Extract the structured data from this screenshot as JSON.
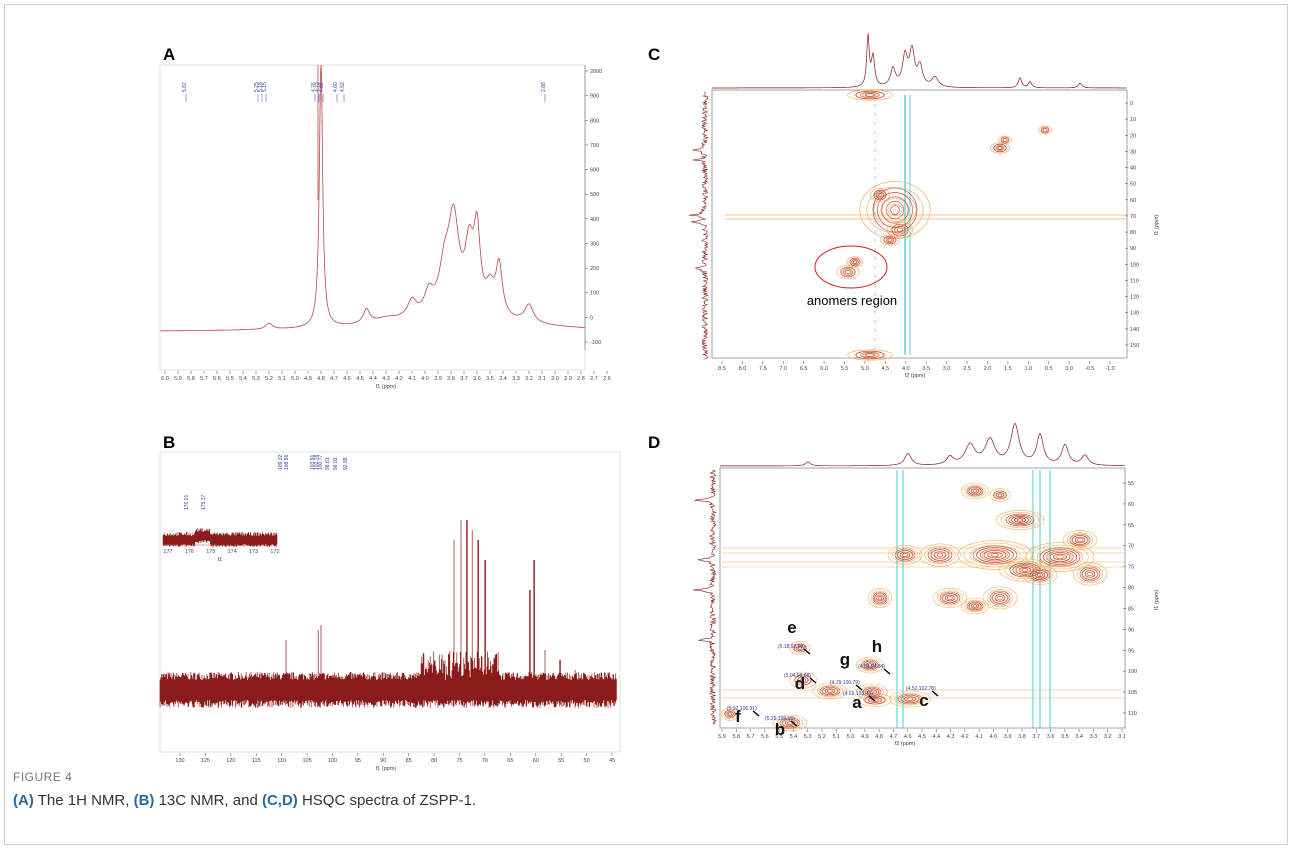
{
  "figure": {
    "panels": {
      "A": {
        "letter": "A",
        "x_axis_title": "f1 (ppm)",
        "x_ticks": [
          "6.0",
          "5.9",
          "5.8",
          "5.7",
          "5.6",
          "5.5",
          "5.4",
          "5.3",
          "5.2",
          "5.1",
          "5.0",
          "4.9",
          "4.8",
          "4.7",
          "4.6",
          "4.5",
          "4.4",
          "4.3",
          "4.2",
          "4.1",
          "4.0",
          "3.9",
          "3.8",
          "3.7",
          "3.6",
          "3.5",
          "3.4",
          "3.3",
          "3.2",
          "3.1",
          "3.0",
          "2.9",
          "2.8",
          "2.7",
          "2.6"
        ],
        "y_ticks": [
          "2000",
          "900",
          "800",
          "700",
          "600",
          "500",
          "400",
          "300",
          "200",
          "100",
          "0",
          "-100"
        ],
        "peak_labels": [
          "5.82",
          "5.25",
          "5.18",
          "5.15",
          "4.76",
          "4.72",
          "4.68",
          "4.60",
          "4.52",
          "2.88"
        ]
      },
      "B": {
        "letter": "B",
        "x_axis_title": "f1 (ppm)",
        "x_ticks": [
          "130",
          "125",
          "120",
          "115",
          "110",
          "105",
          "100",
          "95",
          "90",
          "85",
          "80",
          "75",
          "70",
          "65",
          "60",
          "55",
          "50",
          "45"
        ],
        "inset_x_ticks": [
          "177",
          "176",
          "175",
          "174",
          "173",
          "172"
        ],
        "inset_axis_title": "f1",
        "inset_peak_labels": [
          "176.01",
          "175.17"
        ],
        "peak_labels": [
          "109.32",
          "108.96",
          "103.91",
          "102.78",
          "100.77",
          "98.81",
          "96.93",
          "92.89"
        ]
      },
      "C": {
        "letter": "C",
        "x_axis_title": "f2 (ppm)",
        "y_axis_title": "f1 (ppm)",
        "x_ticks": [
          "8.5",
          "8.0",
          "7.5",
          "7.0",
          "6.5",
          "6.0",
          "5.5",
          "5.0",
          "4.5",
          "4.0",
          "3.5",
          "3.0",
          "2.5",
          "2.0",
          "1.5",
          "1.0",
          "0.5",
          "0.0",
          "-0.5",
          "-1.0"
        ],
        "y_ticks": [
          "0",
          "10",
          "20",
          "30",
          "40",
          "50",
          "60",
          "70",
          "80",
          "90",
          "100",
          "110",
          "120",
          "130",
          "140",
          "150"
        ],
        "annotation": "anomers region"
      },
      "D": {
        "letter": "D",
        "x_axis_title": "f2 (ppm)",
        "y_axis_title": "f1 (ppm)",
        "x_ticks": [
          "5.9",
          "5.8",
          "5.7",
          "5.6",
          "5.5",
          "5.4",
          "5.3",
          "5.2",
          "5.1",
          "5.0",
          "4.9",
          "4.8",
          "4.7",
          "4.6",
          "4.5",
          "4.4",
          "4.3",
          "4.2",
          "4.1",
          "4.0",
          "3.9",
          "3.8",
          "3.7",
          "3.6",
          "3.5",
          "3.4",
          "3.3",
          "3.2",
          "3.1"
        ],
        "y_ticks": [
          "55",
          "60",
          "65",
          "70",
          "75",
          "80",
          "85",
          "90",
          "95",
          "100",
          "105",
          "110"
        ],
        "residues": [
          {
            "letter": "e",
            "coords": "(5.18,92.08)"
          },
          {
            "letter": "h",
            "coords": "(4.59,94.84)"
          },
          {
            "letter": "g",
            "coords": "(4.79,100.79)"
          },
          {
            "letter": "d",
            "coords": "(5.04,98.88)"
          },
          {
            "letter": "a",
            "coords": "(4.69,103.43)"
          },
          {
            "letter": "c",
            "coords": "(4.52,102.78)"
          },
          {
            "letter": "f",
            "coords": "(5.92,106.91)"
          },
          {
            "letter": "b",
            "coords": "(5.25,109.18)"
          }
        ]
      }
    },
    "caption": {
      "label": "FIGURE 4",
      "parts": [
        {
          "text": "(A)",
          "bold": true
        },
        {
          "text": " The 1H NMR, ",
          "bold": false
        },
        {
          "text": "(B)",
          "bold": true
        },
        {
          "text": " 13C NMR, and ",
          "bold": false
        },
        {
          "text": "(C,D)",
          "bold": true
        },
        {
          "text": " HSQC spectra of ZSPP-1.",
          "bold": false
        }
      ]
    }
  }
}
